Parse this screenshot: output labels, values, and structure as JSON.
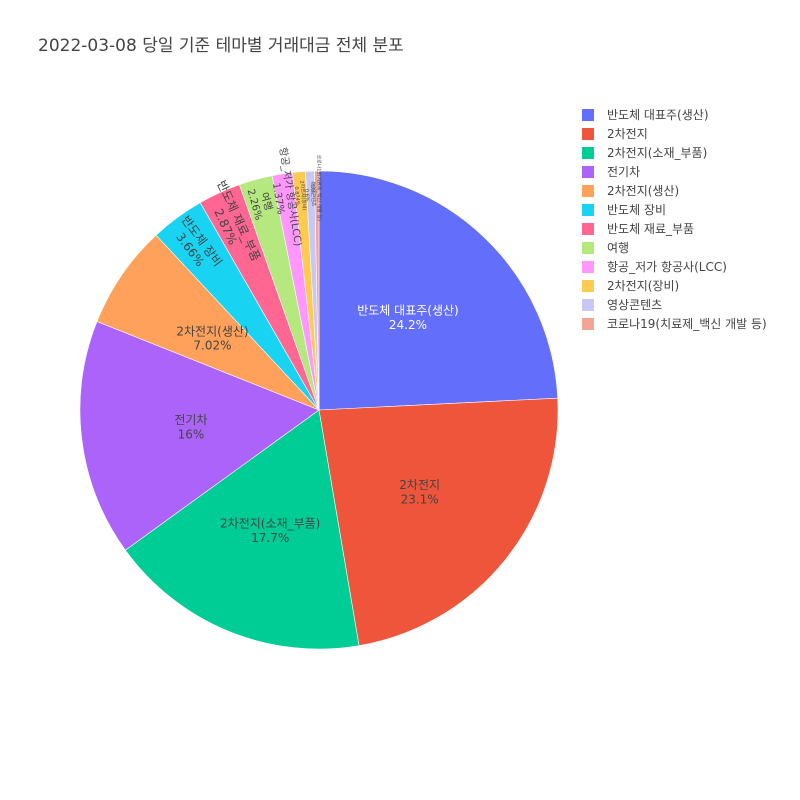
{
  "chart_data": {
    "type": "pie",
    "title": "2022-03-08 당일 기준 테마별 거래대금 전체 분포",
    "legend_placement": "top-right",
    "direction": "clockwise",
    "slices": [
      {
        "label": "반도체 대표주(생산)",
        "value": 24.2,
        "percent_text": "24.2%",
        "color": "#636efa"
      },
      {
        "label": "2차전지",
        "value": 23.1,
        "percent_text": "23.1%",
        "color": "#EF553B"
      },
      {
        "label": "2차전지(소재_부품)",
        "value": 17.7,
        "percent_text": "17.7%",
        "color": "#00cc96"
      },
      {
        "label": "전기차",
        "value": 16.0,
        "percent_text": "16%",
        "color": "#ab63fa"
      },
      {
        "label": "2차전지(생산)",
        "value": 7.02,
        "percent_text": "7.02%",
        "color": "#FFA15A"
      },
      {
        "label": "반도체 장비",
        "value": 3.66,
        "percent_text": "3.66%",
        "color": "#19d3f3"
      },
      {
        "label": "반도체 재료_부품",
        "value": 2.87,
        "percent_text": "2.87%",
        "color": "#FF6692"
      },
      {
        "label": "여행",
        "value": 2.26,
        "percent_text": "2.26%",
        "color": "#B6E880"
      },
      {
        "label": "항공_저가 항공사(LCC)",
        "value": 1.37,
        "percent_text": "1.37%",
        "color": "#FF97FF"
      },
      {
        "label": "2차전지(장비)",
        "value": 0.874,
        "percent_text": "0.874%",
        "color": "#FECB52"
      },
      {
        "label": "영상콘텐츠",
        "value": 0.6,
        "percent_text": "0.6%",
        "color": "#c8c8f8"
      },
      {
        "label": "코로나19(치료제_백신 개발 등)",
        "value": 0.3,
        "percent_text": "0.3%",
        "color": "#f2a497"
      }
    ]
  }
}
